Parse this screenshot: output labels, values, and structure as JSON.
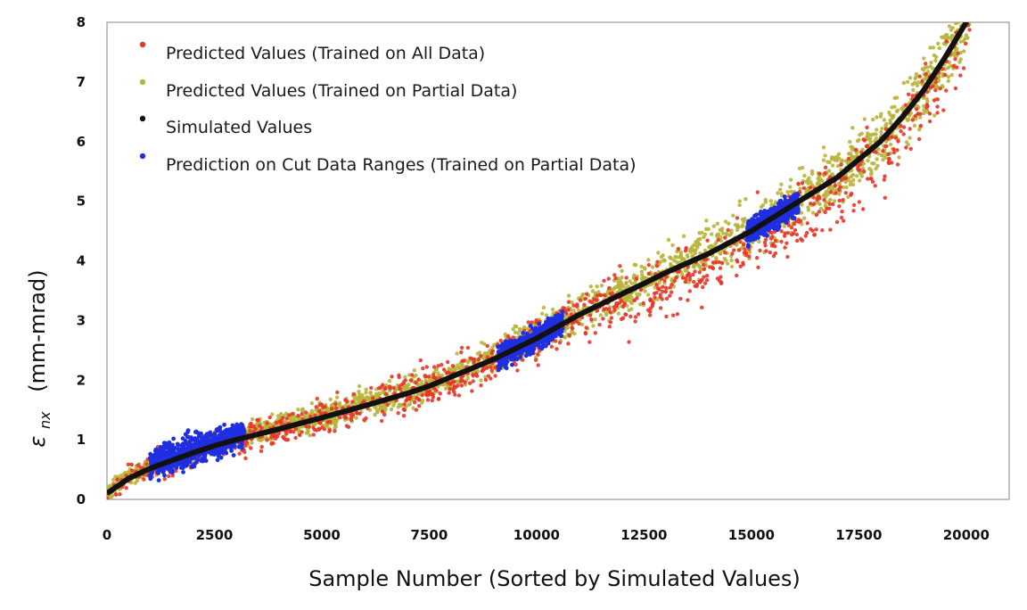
{
  "chart_data": {
    "type": "scatter",
    "title": "",
    "xlabel": "Sample Number (Sorted by Simulated Values)",
    "ylabel_symbol": "ε",
    "ylabel_subscript": "nx",
    "ylabel_unit": "(mm-mrad)",
    "xlim": [
      0,
      21000
    ],
    "ylim": [
      0,
      8
    ],
    "xticks": [
      0,
      2500,
      5000,
      7500,
      10000,
      12500,
      15000,
      17500,
      20000
    ],
    "yticks": [
      0,
      1,
      2,
      3,
      4,
      5,
      6,
      7,
      8
    ],
    "legend_position": "top-left",
    "grid": false,
    "series": [
      {
        "name": "Predicted Values (Trained on All Data)",
        "color": "#e8352a",
        "description": "scatter around simulated curve, spread ~0.3-0.6",
        "approx_center_x": [
          0,
          2500,
          5000,
          7500,
          10000,
          12500,
          15000,
          17500,
          20000
        ],
        "approx_center_y": [
          0.1,
          0.9,
          1.35,
          1.9,
          2.7,
          3.5,
          4.5,
          5.6,
          8.0
        ]
      },
      {
        "name": "Predicted Values (Trained on Partial Data)",
        "color": "#b8b43a",
        "description": "scatter around simulated curve, spread ~0.3-0.5",
        "approx_center_x": [
          0,
          2500,
          5000,
          7500,
          10000,
          12500,
          15000,
          17500,
          20000
        ],
        "approx_center_y": [
          0.1,
          0.9,
          1.4,
          2.0,
          2.7,
          3.6,
          4.6,
          5.8,
          8.0
        ]
      },
      {
        "name": "Simulated Values",
        "color": "#111111",
        "x": [
          0,
          500,
          1000,
          1500,
          2000,
          2500,
          3000,
          4000,
          5000,
          6000,
          7000,
          7500,
          8000,
          9000,
          10000,
          11000,
          12000,
          12500,
          13000,
          14000,
          15000,
          16000,
          17000,
          17500,
          18000,
          18500,
          19000,
          19500,
          20000
        ],
        "y": [
          0.1,
          0.35,
          0.52,
          0.65,
          0.78,
          0.9,
          1.0,
          1.18,
          1.37,
          1.57,
          1.78,
          1.9,
          2.05,
          2.35,
          2.7,
          3.1,
          3.45,
          3.62,
          3.8,
          4.12,
          4.5,
          4.95,
          5.4,
          5.7,
          6.0,
          6.4,
          6.85,
          7.4,
          8.0
        ]
      },
      {
        "name": "Prediction on Cut Data Ranges (Trained on Partial Data)",
        "color": "#1f2fe0",
        "cut_ranges_x": [
          [
            1000,
            3200
          ],
          [
            9100,
            10600
          ],
          [
            14900,
            16100
          ]
        ],
        "approx_center_y": [
          [
            0.5,
            1.0
          ],
          [
            2.4,
            2.85
          ],
          [
            4.4,
            4.85
          ]
        ]
      }
    ]
  }
}
